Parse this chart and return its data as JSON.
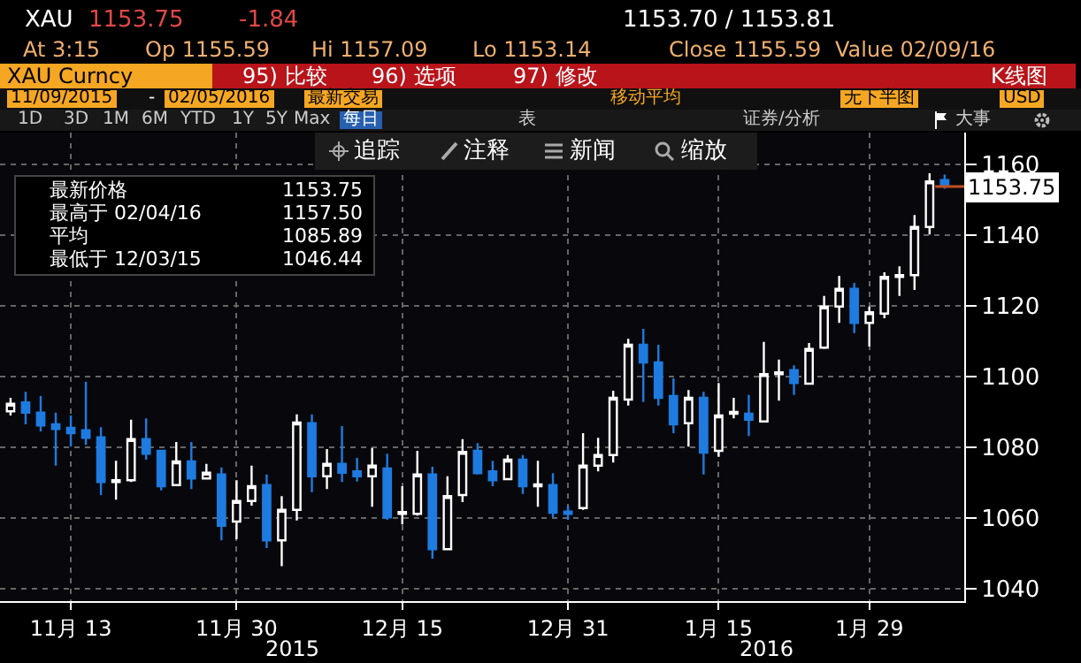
{
  "chart_data": {
    "type": "candlestick",
    "categories": [
      null,
      null,
      null,
      null,
      "11月 13",
      null,
      null,
      null,
      null,
      null,
      null,
      null,
      null,
      null,
      null,
      "11月 30",
      null,
      null,
      null,
      null,
      null,
      null,
      null,
      null,
      null,
      null,
      "12月 15",
      null,
      null,
      null,
      null,
      null,
      null,
      null,
      null,
      null,
      null,
      "12月 31",
      null,
      null,
      null,
      null,
      null,
      null,
      null,
      null,
      null,
      "1月 15",
      null,
      null,
      null,
      null,
      null,
      null,
      null,
      null,
      null,
      "1月 29",
      null,
      null,
      null,
      null,
      null
    ],
    "ohlc": [
      [
        1090.2,
        1094,
        1089,
        1092.3
      ],
      [
        1092.7,
        1095.7,
        1086.5,
        1089.8
      ],
      [
        1089.8,
        1094.5,
        1084.5,
        1086.2
      ],
      [
        1086.5,
        1089.8,
        1074.8,
        1085.2
      ],
      [
        1085.5,
        1089,
        1080.2,
        1084
      ],
      [
        1084.8,
        1098.5,
        1080.7,
        1082.7
      ],
      [
        1082.8,
        1085.7,
        1066.5,
        1070.2
      ],
      [
        1070.2,
        1076.2,
        1065.2,
        1070.7
      ],
      [
        1070.7,
        1087.8,
        1070.2,
        1082.3
      ],
      [
        1082.3,
        1088.2,
        1076.5,
        1078.2
      ],
      [
        1079,
        1079,
        1067.8,
        1069
      ],
      [
        1069.3,
        1081.5,
        1069,
        1076
      ],
      [
        1076,
        1081.5,
        1068.2,
        1071.2
      ],
      [
        1071.2,
        1075.3,
        1071,
        1072.8
      ],
      [
        1072.3,
        1074.3,
        1053.7,
        1057.8
      ],
      [
        1059,
        1070.7,
        1054,
        1064.8
      ],
      [
        1064.8,
        1074.8,
        1063.5,
        1069
      ],
      [
        1069.3,
        1072.3,
        1051.5,
        1053.7
      ],
      [
        1053.7,
        1066.2,
        1046.4,
        1062.3
      ],
      [
        1062.3,
        1089.3,
        1059.3,
        1087
      ],
      [
        1086.8,
        1089.3,
        1067.3,
        1071.8
      ],
      [
        1071.8,
        1079.5,
        1068.2,
        1075.3
      ],
      [
        1075.3,
        1086,
        1070.2,
        1072.8
      ],
      [
        1073.2,
        1077,
        1070.3,
        1071.8
      ],
      [
        1071.8,
        1079.8,
        1063.2,
        1074.8
      ],
      [
        1074,
        1078.2,
        1059.5,
        1060.2
      ],
      [
        1061.2,
        1069,
        1058.2,
        1061.7
      ],
      [
        1061.2,
        1079,
        1060.7,
        1072.3
      ],
      [
        1072.3,
        1074.5,
        1048.5,
        1051.2
      ],
      [
        1051.2,
        1071.8,
        1051.2,
        1066.2
      ],
      [
        1066.5,
        1082.3,
        1064.5,
        1078.7
      ],
      [
        1079,
        1081.2,
        1072.3,
        1072.7
      ],
      [
        1073.2,
        1076.2,
        1069,
        1070.7
      ],
      [
        1071,
        1077.8,
        1070.7,
        1076.5
      ],
      [
        1076.5,
        1077.8,
        1066.8,
        1069
      ],
      [
        1069,
        1076.2,
        1063.2,
        1069.5
      ],
      [
        1069.3,
        1072.7,
        1060.2,
        1061.5
      ],
      [
        1061.8,
        1063.5,
        1059.5,
        1061.2
      ],
      [
        1062.8,
        1084,
        1062.3,
        1074.8
      ],
      [
        1074.8,
        1082.7,
        1073.2,
        1077.8
      ],
      [
        1077.8,
        1096,
        1075.7,
        1094
      ],
      [
        1093.5,
        1110.7,
        1091.8,
        1109
      ],
      [
        1109,
        1113.5,
        1092.8,
        1104
      ],
      [
        1104,
        1109,
        1091.8,
        1094
      ],
      [
        1094.5,
        1099.5,
        1084,
        1086.5
      ],
      [
        1086.8,
        1096.2,
        1080.2,
        1094
      ],
      [
        1094,
        1095.7,
        1072.3,
        1078.5
      ],
      [
        1079,
        1098.2,
        1077.3,
        1089
      ],
      [
        1089.5,
        1094,
        1088.2,
        1090
      ],
      [
        1089.5,
        1094.8,
        1083.2,
        1087.8
      ],
      [
        1087.3,
        1109.8,
        1087.3,
        1100.7
      ],
      [
        1100.7,
        1104.8,
        1093.2,
        1101.2
      ],
      [
        1101.8,
        1103.2,
        1094.8,
        1098.2
      ],
      [
        1098,
        1109.5,
        1098,
        1107.8
      ],
      [
        1108.2,
        1122.8,
        1107.8,
        1119.8
      ],
      [
        1119.8,
        1128.5,
        1115.2,
        1124.8
      ],
      [
        1124.8,
        1126.5,
        1112.3,
        1115.2
      ],
      [
        1115.2,
        1119.8,
        1108.5,
        1118.2
      ],
      [
        1117.8,
        1129.5,
        1116.5,
        1128.2
      ],
      [
        1128.2,
        1131.2,
        1122.8,
        1128.7
      ],
      [
        1128.7,
        1145.7,
        1124.5,
        1142.3
      ],
      [
        1142.3,
        1157.5,
        1140.2,
        1155.2
      ],
      [
        1155.6,
        1157.1,
        1153.1,
        1153.8
      ]
    ],
    "colors": [
      "#ffffff",
      "#1e7be0",
      "#1e7be0",
      "#1e7be0",
      "#1e7be0",
      "#1e7be0",
      "#1e7be0",
      "#ffffff",
      "#ffffff",
      "#1e7be0",
      "#1e7be0",
      "#ffffff",
      "#1e7be0",
      "#ffffff",
      "#1e7be0",
      "#ffffff",
      "#ffffff",
      "#1e7be0",
      "#ffffff",
      "#ffffff",
      "#1e7be0",
      "#ffffff",
      "#1e7be0",
      "#1e7be0",
      "#ffffff",
      "#1e7be0",
      "#ffffff",
      "#ffffff",
      "#1e7be0",
      "#ffffff",
      "#ffffff",
      "#1e7be0",
      "#1e7be0",
      "#ffffff",
      "#1e7be0",
      "#ffffff",
      "#1e7be0",
      "#1e7be0",
      "#ffffff",
      "#ffffff",
      "#ffffff",
      "#ffffff",
      "#1e7be0",
      "#1e7be0",
      "#1e7be0",
      "#ffffff",
      "#1e7be0",
      "#ffffff",
      "#ffffff",
      "#1e7be0",
      "#ffffff",
      "#ffffff",
      "#1e7be0",
      "#ffffff",
      "#ffffff",
      "#ffffff",
      "#1e7be0",
      "#ffffff",
      "#ffffff",
      "#ffffff",
      "#ffffff",
      "#ffffff",
      "#1e7be0"
    ],
    "ylim": [
      1036.5,
      1169
    ],
    "yticks": [
      1040,
      1060,
      1080,
      1100,
      1120,
      1140,
      1160
    ],
    "grid": true,
    "ref_lines": [
      {
        "axis": "y",
        "value": 1153.75,
        "label": "1153.75",
        "color": "#c05020"
      }
    ],
    "annotations": [
      "XAU",
      "1153.75",
      "-1.84",
      "1153.70 / 1153.81",
      "At 3:15",
      "Op 1155.59",
      "Hi 1157.09",
      "Lo 1153.14",
      "Close 1155.59",
      "Value 02/09/16",
      "XAU Curncy",
      "95) 比较",
      "96) 选项",
      "97) 修改",
      "K线图",
      "11/09/2015",
      "-",
      "02/05/2016",
      "最新交易",
      "移动平均",
      "无下半图",
      "USD",
      "1D",
      "3D",
      "1M",
      "6M",
      "YTD",
      "1Y",
      "5Y",
      "Max",
      "每日",
      "表",
      "证券/分析",
      "大事",
      "追踪",
      "注释",
      "新闻",
      "缩放",
      "最新价格",
      "1153.75",
      "最高于 02/04/16",
      "1157.50",
      "平均",
      "1085.89",
      "最低于 12/03/15",
      "1046.44",
      "2015",
      "2016"
    ]
  }
}
